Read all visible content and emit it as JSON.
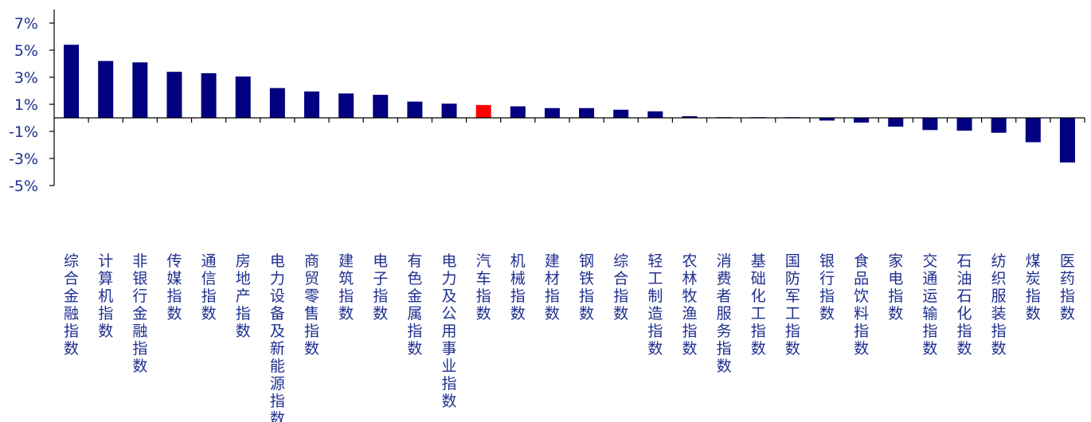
{
  "chart_data": {
    "type": "bar",
    "title": "",
    "xlabel": "",
    "ylabel": "",
    "ylim": [
      -5,
      8
    ],
    "yticks": [
      -5,
      -3,
      -1,
      1,
      3,
      5,
      7
    ],
    "ytick_labels": [
      "-5%",
      "-3%",
      "-1%",
      "1%",
      "3%",
      "5%",
      "7%"
    ],
    "grid": false,
    "legend": "none",
    "colors": {
      "bar": "#000080",
      "highlight": "#ff0000",
      "axis": "#000000",
      "text": "#1f2f8f"
    },
    "highlight_category": "汽车指数",
    "categories": [
      "综合金融指数",
      "计算机指数",
      "非银行金融指数",
      "传媒指数",
      "通信指数",
      "房地产指数",
      "电力设备及新能源指数",
      "商贸零售指数",
      "建筑指数",
      "电子指数",
      "有色金属指数",
      "电力及公用事业指数",
      "汽车指数",
      "机械指数",
      "建材指数",
      "钢铁指数",
      "综合指数",
      "轻工制造指数",
      "农林牧渔指数",
      "消费者服务指数",
      "基础化工指数",
      "国防军工指数",
      "银行指数",
      "食品饮料指数",
      "家电指数",
      "交通运输指数",
      "石油石化指数",
      "纺织服装指数",
      "煤炭指数",
      "医药指数"
    ],
    "values": [
      5.4,
      4.2,
      4.1,
      3.4,
      3.3,
      3.05,
      2.2,
      1.95,
      1.8,
      1.7,
      1.2,
      1.05,
      0.95,
      0.85,
      0.72,
      0.72,
      0.6,
      0.48,
      0.12,
      0.05,
      0.05,
      0.05,
      -0.2,
      -0.35,
      -0.65,
      -0.9,
      -0.95,
      -1.1,
      -1.8,
      -3.3
    ]
  }
}
